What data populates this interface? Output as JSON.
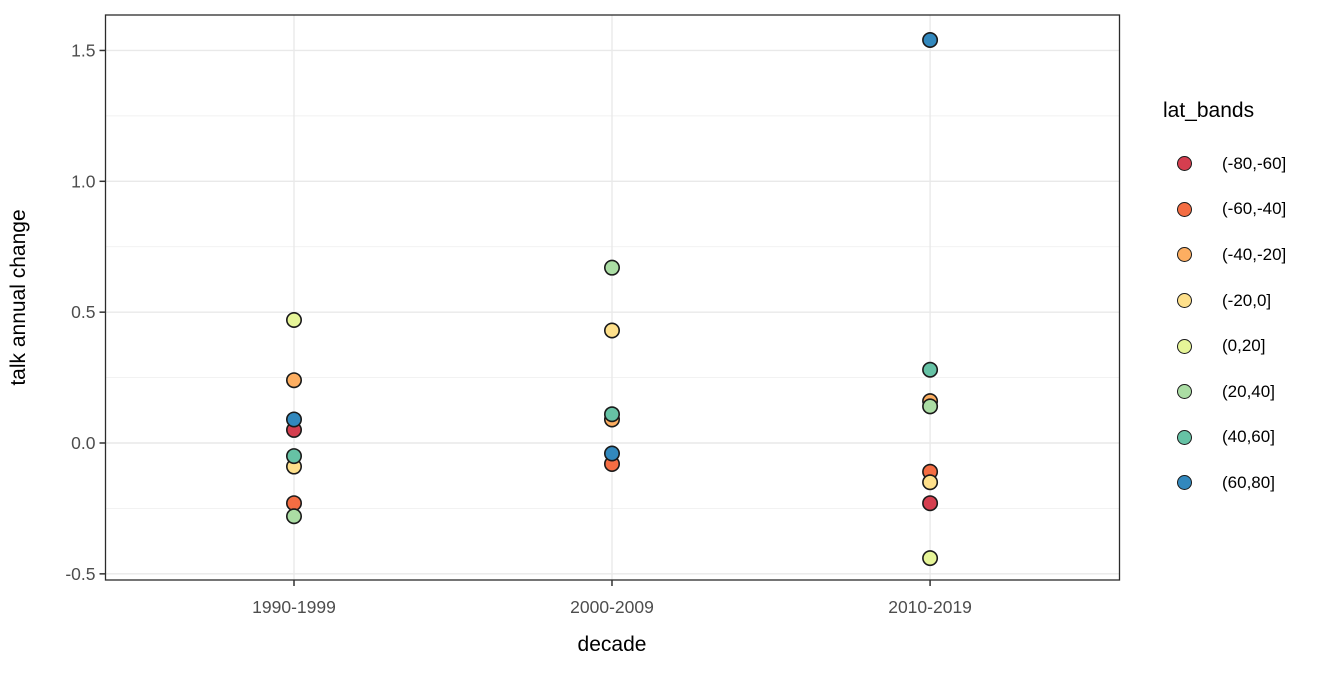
{
  "legend": {
    "title": "lat_bands"
  },
  "chart_data": {
    "type": "scatter",
    "title": "",
    "xlabel": "decade",
    "ylabel": "talk annual change",
    "categories": [
      "1990-1999",
      "2000-2009",
      "2010-2019"
    ],
    "series": [
      {
        "name": "(-80,-60]",
        "color": "#d53e4f",
        "values": [
          0.05,
          null,
          -0.23
        ]
      },
      {
        "name": "(-60,-40]",
        "color": "#f46d43",
        "values": [
          -0.23,
          -0.08,
          -0.11
        ]
      },
      {
        "name": "(-40,-20]",
        "color": "#fdae61",
        "values": [
          0.24,
          0.09,
          0.16
        ]
      },
      {
        "name": "(-20,0]",
        "color": "#fee08b",
        "values": [
          -0.09,
          0.43,
          -0.15
        ]
      },
      {
        "name": "(0,20]",
        "color": "#e6f598",
        "values": [
          0.47,
          null,
          -0.44
        ]
      },
      {
        "name": "(20,40]",
        "color": "#abdda4",
        "values": [
          -0.28,
          0.67,
          0.14
        ]
      },
      {
        "name": "(40,60]",
        "color": "#66c2a5",
        "values": [
          -0.05,
          0.11,
          0.28
        ]
      },
      {
        "name": "(60,80]",
        "color": "#3288bd",
        "values": [
          0.09,
          -0.04,
          1.54
        ]
      }
    ],
    "y_ticks": [
      {
        "label": "-0.5",
        "value": -0.5
      },
      {
        "label": "0.0",
        "value": 0.0
      },
      {
        "label": "0.5",
        "value": 0.5
      },
      {
        "label": "1.0",
        "value": 1.0
      },
      {
        "label": "1.5",
        "value": 1.5
      }
    ],
    "y_minor": [
      -0.25,
      0.25,
      0.75,
      1.25
    ],
    "ylim": [
      -0.5235,
      1.6355
    ],
    "grid": true,
    "legend_position": "right",
    "point_stroke": "#1a1a1a",
    "grid_major_color": "#e9e9e9",
    "grid_minor_color": "#f0f0f0",
    "panel_border_color": "#2b2b2b",
    "tick_label_color": "#4d4d4d",
    "axis_title_color": "#000000"
  }
}
